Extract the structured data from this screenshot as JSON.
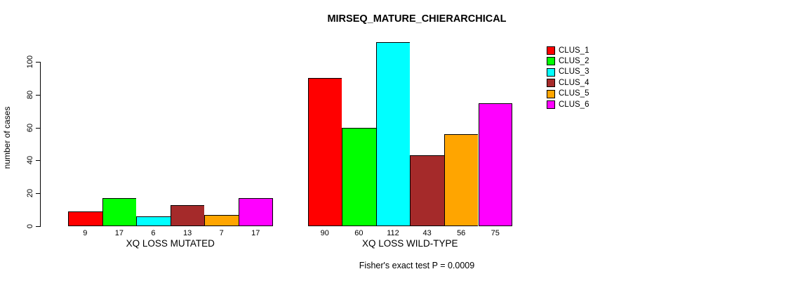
{
  "chart_data": {
    "type": "bar",
    "title": "MIRSEQ_MATURE_CHIERARCHICAL",
    "ylabel": "number of cases",
    "xlabel": "",
    "annotation": "Fisher's exact test P = 0.0009",
    "ylim": [
      0,
      100
    ],
    "yticks": [
      0,
      20,
      40,
      60,
      80,
      100
    ],
    "grid": false,
    "legend_position": "right",
    "groups": [
      "XQ LOSS MUTATED",
      "XQ LOSS WILD-TYPE"
    ],
    "series": [
      {
        "name": "CLUS_1",
        "color": "#FF0000",
        "values": [
          9,
          90
        ]
      },
      {
        "name": "CLUS_2",
        "color": "#00FF00",
        "values": [
          17,
          60
        ]
      },
      {
        "name": "CLUS_3",
        "color": "#00FFFF",
        "values": [
          6,
          112
        ]
      },
      {
        "name": "CLUS_4",
        "color": "#A52A2A",
        "values": [
          13,
          43
        ]
      },
      {
        "name": "CLUS_5",
        "color": "#FFA500",
        "values": [
          7,
          56
        ]
      },
      {
        "name": "CLUS_6",
        "color": "#FF00FF",
        "values": [
          17,
          75
        ]
      }
    ],
    "bar_value_labels": [
      [
        9,
        17,
        6,
        13,
        7,
        17
      ],
      [
        90,
        60,
        112,
        43,
        56,
        75
      ]
    ]
  }
}
